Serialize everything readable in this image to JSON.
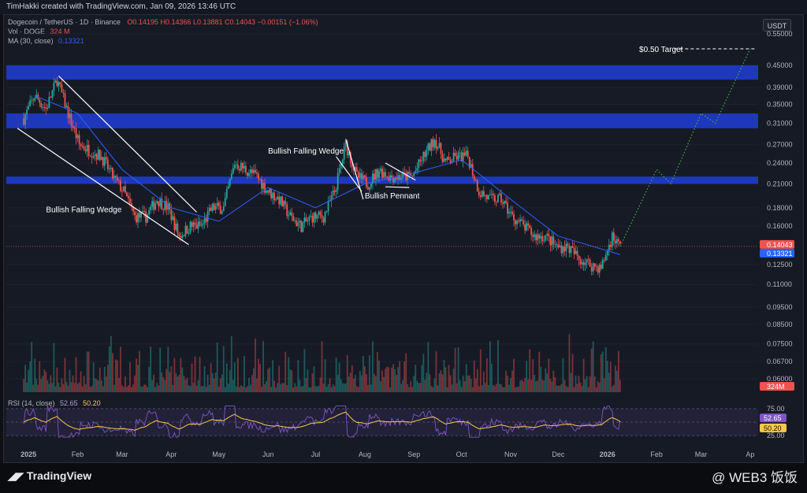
{
  "header": {
    "created_by": "TimHakki created with TradingView.com, Jan 09, 2026 13:46 UTC"
  },
  "legend": {
    "symbol": "Dogecoin / TetherUS · 1D · Binance",
    "ohlc": "O0.14195 H0.14366 L0.13881 C0.14043 −0.00151 (−1.06%)",
    "vol_label": "Vol · DOGE",
    "vol_value": "324 M",
    "ma_label": "MA (30, close)",
    "ma_value": "0.13321",
    "rsi_label": "RSI (14, close)",
    "rsi_value": "52.65",
    "rsi_ma_value": "50.20"
  },
  "currency_button": "USDT",
  "footer": {
    "logo": "TradingView",
    "watermark": "@ WEB3 饭饭"
  },
  "colors": {
    "background": "#161a25",
    "up": "#26a69a",
    "down": "#ef5350",
    "ma": "#2962ff",
    "zone": "#1e3ed6",
    "rsi": "#7e57c2",
    "rsi_ma": "#f7c948",
    "projection": "#4caf50"
  },
  "chart_data": {
    "type": "candlestick",
    "title": "Dogecoin / TetherUS · 1D · Binance",
    "y_scale": "log",
    "ylim": [
      0.055,
      0.6
    ],
    "y_ticks": [
      "0.55000",
      "0.45000",
      "0.39000",
      "0.35000",
      "0.31000",
      "0.27000",
      "0.24000",
      "0.21000",
      "0.18000",
      "0.16000",
      "0.14043",
      "0.13321",
      "0.12500",
      "0.11000",
      "0.09500",
      "0.08500",
      "0.07500",
      "0.06700",
      "0.06000",
      "324M"
    ],
    "x_ticks": [
      "2025",
      "Feb",
      "Mar",
      "Apr",
      "May",
      "Jun",
      "Jul",
      "Aug",
      "Sep",
      "Oct",
      "Nov",
      "Dec",
      "2026",
      "Feb",
      "Mar",
      "Ap"
    ],
    "price_path": [
      {
        "x": "2024-12-29",
        "y": 0.32
      },
      {
        "x": "2025-01-05",
        "y": 0.37
      },
      {
        "x": "2025-01-12",
        "y": 0.34
      },
      {
        "x": "2025-01-19",
        "y": 0.41
      },
      {
        "x": "2025-01-26",
        "y": 0.33
      },
      {
        "x": "2025-02-02",
        "y": 0.27
      },
      {
        "x": "2025-02-09",
        "y": 0.26
      },
      {
        "x": "2025-02-16",
        "y": 0.25
      },
      {
        "x": "2025-02-23",
        "y": 0.22
      },
      {
        "x": "2025-03-02",
        "y": 0.2
      },
      {
        "x": "2025-03-09",
        "y": 0.17
      },
      {
        "x": "2025-03-16",
        "y": 0.17
      },
      {
        "x": "2025-03-23",
        "y": 0.19
      },
      {
        "x": "2025-03-30",
        "y": 0.18
      },
      {
        "x": "2025-04-06",
        "y": 0.15
      },
      {
        "x": "2025-04-13",
        "y": 0.16
      },
      {
        "x": "2025-04-20",
        "y": 0.16
      },
      {
        "x": "2025-04-27",
        "y": 0.18
      },
      {
        "x": "2025-05-04",
        "y": 0.18
      },
      {
        "x": "2025-05-11",
        "y": 0.24
      },
      {
        "x": "2025-05-18",
        "y": 0.23
      },
      {
        "x": "2025-05-25",
        "y": 0.22
      },
      {
        "x": "2025-06-01",
        "y": 0.2
      },
      {
        "x": "2025-06-08",
        "y": 0.19
      },
      {
        "x": "2025-06-15",
        "y": 0.17
      },
      {
        "x": "2025-06-22",
        "y": 0.16
      },
      {
        "x": "2025-06-29",
        "y": 0.17
      },
      {
        "x": "2025-07-06",
        "y": 0.17
      },
      {
        "x": "2025-07-13",
        "y": 0.2
      },
      {
        "x": "2025-07-20",
        "y": 0.27
      },
      {
        "x": "2025-07-27",
        "y": 0.22
      },
      {
        "x": "2025-08-03",
        "y": 0.21
      },
      {
        "x": "2025-08-10",
        "y": 0.23
      },
      {
        "x": "2025-08-17",
        "y": 0.22
      },
      {
        "x": "2025-08-24",
        "y": 0.22
      },
      {
        "x": "2025-08-31",
        "y": 0.22
      },
      {
        "x": "2025-09-07",
        "y": 0.25
      },
      {
        "x": "2025-09-14",
        "y": 0.28
      },
      {
        "x": "2025-09-21",
        "y": 0.24
      },
      {
        "x": "2025-09-28",
        "y": 0.25
      },
      {
        "x": "2025-10-05",
        "y": 0.25
      },
      {
        "x": "2025-10-12",
        "y": 0.2
      },
      {
        "x": "2025-10-19",
        "y": 0.19
      },
      {
        "x": "2025-10-26",
        "y": 0.19
      },
      {
        "x": "2025-11-02",
        "y": 0.17
      },
      {
        "x": "2025-11-09",
        "y": 0.16
      },
      {
        "x": "2025-11-16",
        "y": 0.15
      },
      {
        "x": "2025-11-23",
        "y": 0.15
      },
      {
        "x": "2025-11-30",
        "y": 0.14
      },
      {
        "x": "2025-12-07",
        "y": 0.14
      },
      {
        "x": "2025-12-14",
        "y": 0.13
      },
      {
        "x": "2025-12-21",
        "y": 0.125
      },
      {
        "x": "2025-12-28",
        "y": 0.122
      },
      {
        "x": "2026-01-04",
        "y": 0.15
      },
      {
        "x": "2026-01-09",
        "y": 0.14043
      }
    ],
    "ma_path": [
      {
        "x": "2025-01-05",
        "y": 0.37
      },
      {
        "x": "2025-02-01",
        "y": 0.33
      },
      {
        "x": "2025-03-01",
        "y": 0.23
      },
      {
        "x": "2025-04-01",
        "y": 0.18
      },
      {
        "x": "2025-05-01",
        "y": 0.165
      },
      {
        "x": "2025-06-01",
        "y": 0.205
      },
      {
        "x": "2025-07-01",
        "y": 0.18
      },
      {
        "x": "2025-08-01",
        "y": 0.21
      },
      {
        "x": "2025-09-01",
        "y": 0.225
      },
      {
        "x": "2025-10-01",
        "y": 0.245
      },
      {
        "x": "2025-11-01",
        "y": 0.19
      },
      {
        "x": "2025-12-01",
        "y": 0.15
      },
      {
        "x": "2026-01-09",
        "y": 0.13321
      }
    ],
    "zones": [
      {
        "from": 0.41,
        "to": 0.45
      },
      {
        "from": 0.3,
        "to": 0.33
      },
      {
        "from": 0.21,
        "to": 0.22
      }
    ],
    "projection_path": [
      {
        "x": "2026-01-09",
        "y": 0.14043
      },
      {
        "x": "2026-02-01",
        "y": 0.23
      },
      {
        "x": "2026-02-10",
        "y": 0.21
      },
      {
        "x": "2026-03-01",
        "y": 0.33
      },
      {
        "x": "2026-03-10",
        "y": 0.31
      },
      {
        "x": "2026-04-01",
        "y": 0.5
      }
    ],
    "annotations": [
      "$0.50 Target",
      "Bullish Falling Wedge",
      "Bullish Falling Wedge",
      "Bullish Pennant"
    ],
    "rsi": {
      "levels": [
        75,
        50,
        25
      ],
      "last": 52.65,
      "ma_last": 50.2
    },
    "last_price": 0.14043,
    "ma_last": 0.13321,
    "volume_last": "324M"
  }
}
